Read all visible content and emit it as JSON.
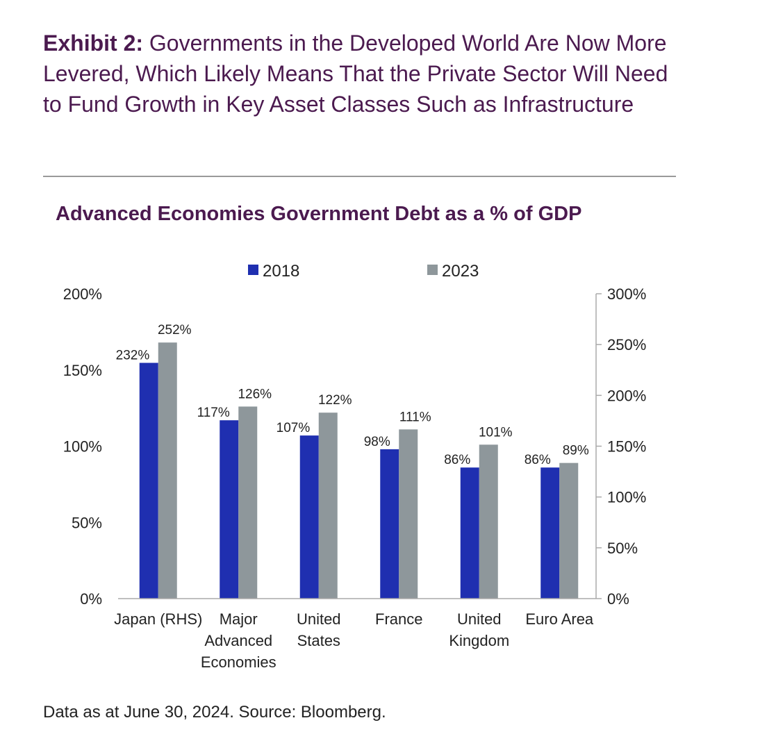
{
  "exhibit": {
    "lead": "Exhibit 2:",
    "text": " Governments in the Developed World Are Now More Levered, Which Likely Means That the Private Sector Will Need to Fund Growth in Key Asset Classes Such as Infrastructure"
  },
  "source": "Data as at June 30, 2024. Source: Bloomberg.",
  "colors": {
    "s2018": "#1f2fb0",
    "s2023": "#8e979b",
    "title": "#4b1a4f",
    "axis": "#aaaaaa"
  },
  "chart_data": {
    "type": "bar",
    "title": "Advanced Economies Government Debt as a % of GDP",
    "categories": [
      [
        "Japan (RHS)"
      ],
      [
        "Major",
        "Advanced",
        "Economies"
      ],
      [
        "United",
        "States"
      ],
      [
        "France"
      ],
      [
        "United",
        "Kingdom"
      ],
      [
        "Euro Area"
      ]
    ],
    "secondary_axis_categories": [
      0
    ],
    "series": [
      {
        "name": "2018",
        "values": [
          232,
          117,
          107,
          98,
          86,
          86
        ],
        "labels": [
          "232%",
          "117%",
          "107%",
          "98%",
          "86%",
          "86%"
        ]
      },
      {
        "name": "2023",
        "values": [
          252,
          126,
          122,
          111,
          101,
          89
        ],
        "labels": [
          "252%",
          "126%",
          "122%",
          "111%",
          "101%",
          "89%"
        ]
      }
    ],
    "y_left": {
      "lim": [
        0,
        200
      ],
      "ticks": [
        0,
        50,
        100,
        150,
        200
      ],
      "tick_labels": [
        "0%",
        "50%",
        "100%",
        "150%",
        "200%"
      ]
    },
    "y_right": {
      "lim": [
        0,
        300
      ],
      "ticks": [
        0,
        50,
        100,
        150,
        200,
        250,
        300
      ],
      "tick_labels": [
        "0%",
        "50%",
        "100%",
        "150%",
        "200%",
        "250%",
        "300%"
      ]
    },
    "legend_position": "top-center",
    "grid": false
  }
}
